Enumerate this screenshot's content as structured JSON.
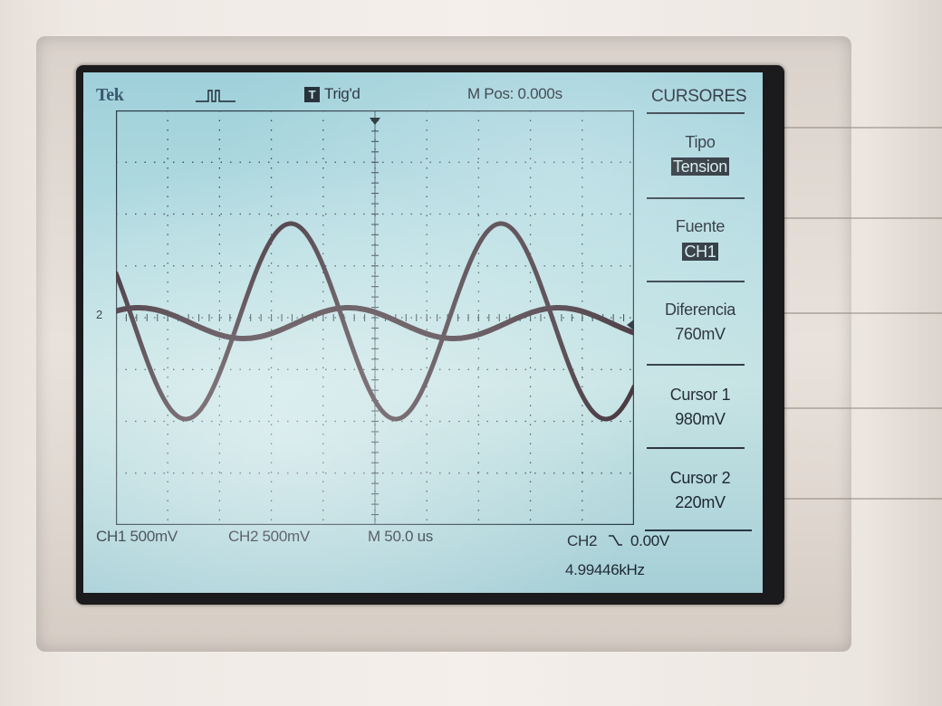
{
  "scope": {
    "brand": "Tek",
    "trigger_state_icon": "T",
    "trigger_state": "Trig'd",
    "m_pos": "M Pos: 0.000s",
    "ch1_scale": "CH1  500mV",
    "ch2_scale": "CH2  500mV",
    "timebase": "M 50.0 us",
    "trigger_source": "CH2",
    "trigger_slope_icon": "falling-edge-icon",
    "trigger_level": "0.00V",
    "frequency": "4.99446kHz",
    "ch2_marker": "2"
  },
  "menu": {
    "title": "CURSORES",
    "items": [
      {
        "label": "Tipo",
        "value": "Tension",
        "inverted": true
      },
      {
        "label": "Fuente",
        "value": "CH1",
        "inverted": true
      },
      {
        "label": "Diferencia",
        "value": "760mV",
        "inverted": false
      },
      {
        "label": "Cursor 1",
        "value": "980mV",
        "inverted": false
      },
      {
        "label": "Cursor 2",
        "value": "220mV",
        "inverted": false
      }
    ]
  },
  "colors": {
    "lcd_background": "#b6dde2",
    "trace": "#3a2a33",
    "grid": "#3a4a55",
    "bezel": "#efe9e4"
  }
}
